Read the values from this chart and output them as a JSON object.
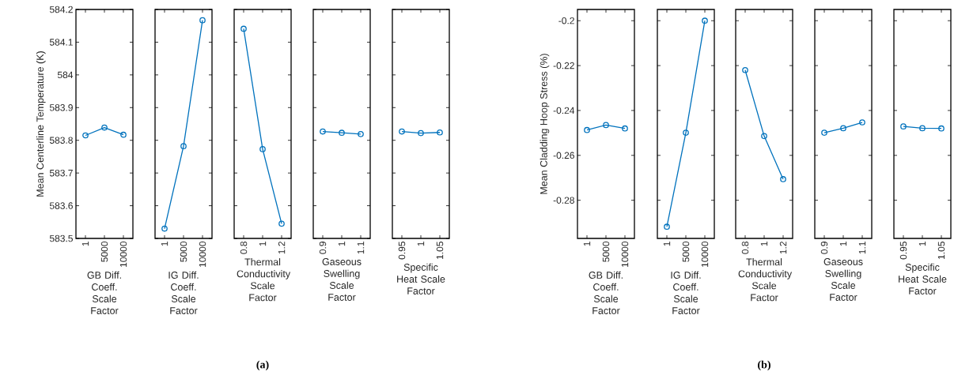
{
  "chart_data": [
    {
      "type": "line",
      "categories": [
        "1",
        "5000",
        "10000"
      ],
      "values": [
        583.815,
        583.839,
        583.817
      ],
      "color": "#0072bd",
      "marker": "circle",
      "xlabel": "GB Diff. Coeff. Scale Factor",
      "ylabel": "Mean Centerline Temperature (K)",
      "ylim": [
        583.5,
        584.2
      ],
      "yticks": [
        583.5,
        583.6,
        583.7,
        583.8,
        583.9,
        584,
        584.1,
        584.2
      ]
    },
    {
      "type": "line",
      "categories": [
        "1",
        "5000",
        "10000"
      ],
      "values": [
        583.53,
        583.782,
        584.167
      ],
      "color": "#0072bd",
      "marker": "circle",
      "xlabel": "IG Diff. Coeff. Scale Factor",
      "ylim": [
        583.5,
        584.2
      ],
      "yticks": [
        583.5,
        583.6,
        583.7,
        583.8,
        583.9,
        584,
        584.1,
        584.2
      ],
      "tick_labels": "x"
    },
    {
      "type": "line",
      "categories": [
        "0.8",
        "1",
        "1.2"
      ],
      "values": [
        584.141,
        583.773,
        583.545
      ],
      "color": "#0072bd",
      "marker": "circle",
      "xlabel": "Thermal Conductivity Scale Factor",
      "ylim": [
        583.5,
        584.2
      ],
      "yticks": [
        583.5,
        583.6,
        583.7,
        583.8,
        583.9,
        584,
        584.1,
        584.2
      ],
      "tick_labels": "x",
      "annotations": [
        "(a)"
      ]
    },
    {
      "type": "line",
      "categories": [
        "0.9",
        "1",
        "1.1"
      ],
      "values": [
        583.827,
        583.823,
        583.819
      ],
      "color": "#0072bd",
      "marker": "circle",
      "xlabel": "Gaseous Swelling Scale Factor",
      "ylim": [
        583.5,
        584.2
      ],
      "yticks": [
        583.5,
        583.6,
        583.7,
        583.8,
        583.9,
        584,
        584.1,
        584.2
      ],
      "tick_labels": "x"
    },
    {
      "type": "line",
      "categories": [
        "0.95",
        "1",
        "1.05"
      ],
      "values": [
        583.827,
        583.822,
        583.824
      ],
      "color": "#0072bd",
      "marker": "circle",
      "xlabel": "Specific Heat Scale Factor",
      "ylim": [
        583.5,
        584.2
      ],
      "yticks": [
        583.5,
        583.6,
        583.7,
        583.8,
        583.9,
        584,
        584.1,
        584.2
      ],
      "tick_labels": "x"
    },
    {
      "type": "line",
      "categories": [
        "1",
        "5000",
        "10000"
      ],
      "values": [
        -0.2487,
        -0.2465,
        -0.248
      ],
      "color": "#0072bd",
      "marker": "circle",
      "xlabel": "GB Diff. Coeff. Scale Factor",
      "ylabel": "Mean Cladding Hoop Stress (%)",
      "ylim": [
        -0.297,
        -0.195
      ],
      "yticks": [
        -0.28,
        -0.26,
        -0.24,
        -0.22,
        -0.2
      ]
    },
    {
      "type": "line",
      "categories": [
        "1",
        "5000",
        "10000"
      ],
      "values": [
        -0.2918,
        -0.2499,
        -0.2
      ],
      "color": "#0072bd",
      "marker": "circle",
      "xlabel": "IG Diff. Coeff. Scale Factor",
      "ylim": [
        -0.297,
        -0.195
      ],
      "yticks": [
        -0.28,
        -0.26,
        -0.24,
        -0.22,
        -0.2
      ],
      "tick_labels": "x"
    },
    {
      "type": "line",
      "categories": [
        "0.8",
        "1",
        "1.2"
      ],
      "values": [
        -0.222,
        -0.2514,
        -0.2706
      ],
      "color": "#0072bd",
      "marker": "circle",
      "xlabel": "Thermal Conductivity Scale Factor",
      "ylim": [
        -0.297,
        -0.195
      ],
      "yticks": [
        -0.28,
        -0.26,
        -0.24,
        -0.22,
        -0.2
      ],
      "tick_labels": "x",
      "annotations": [
        "(b)"
      ]
    },
    {
      "type": "line",
      "categories": [
        "0.9",
        "1",
        "1.1"
      ],
      "values": [
        -0.2499,
        -0.2479,
        -0.2453
      ],
      "color": "#0072bd",
      "marker": "circle",
      "xlabel": "Gaseous Swelling Scale Factor",
      "ylim": [
        -0.297,
        -0.195
      ],
      "yticks": [
        -0.28,
        -0.26,
        -0.24,
        -0.22,
        -0.2
      ],
      "tick_labels": "x"
    },
    {
      "type": "line",
      "categories": [
        "0.95",
        "1",
        "1.05"
      ],
      "values": [
        -0.2471,
        -0.2479,
        -0.248
      ],
      "color": "#0072bd",
      "marker": "circle",
      "xlabel": "Specific Heat Scale Factor",
      "ylim": [
        -0.297,
        -0.195
      ],
      "yticks": [
        -0.28,
        -0.26,
        -0.24,
        -0.22,
        -0.2
      ],
      "tick_labels": "x"
    }
  ]
}
